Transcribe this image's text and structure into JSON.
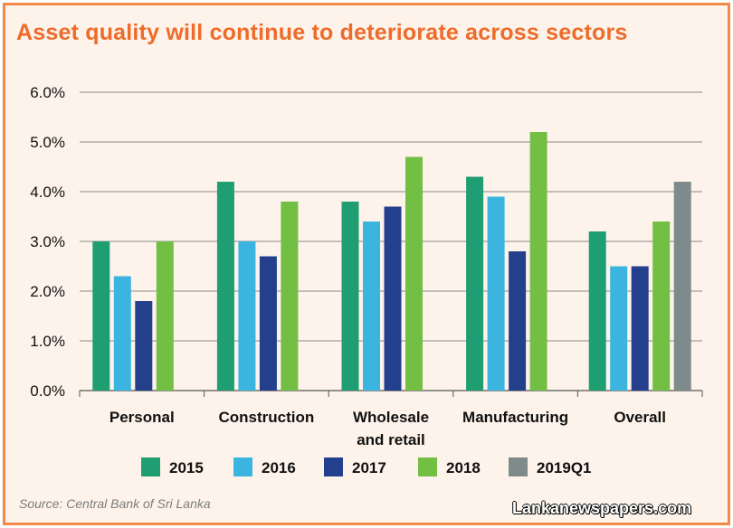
{
  "title": "Asset quality will continue to deteriorate across sectors",
  "source": "Source: Central Bank of Sri Lanka",
  "watermark": "Lankanewspapers.com",
  "chart_data": {
    "type": "bar",
    "title": "Asset quality will continue to deteriorate across sectors",
    "xlabel": "",
    "ylabel": "",
    "ylim": [
      0,
      6
    ],
    "yticks": [
      "0.0%",
      "1.0%",
      "2.0%",
      "3.0%",
      "4.0%",
      "5.0%",
      "6.0%"
    ],
    "grid": true,
    "legend_position": "bottom",
    "categories": [
      [
        "Personal"
      ],
      [
        "Construction"
      ],
      [
        "Wholesale",
        "and retail"
      ],
      [
        "Manufacturing"
      ],
      [
        "Overall"
      ]
    ],
    "series": [
      {
        "name": "2015",
        "color": "#1f9e73",
        "values": [
          3.0,
          4.2,
          3.8,
          4.3,
          3.2
        ]
      },
      {
        "name": "2016",
        "color": "#3bb5e0",
        "values": [
          2.3,
          3.0,
          3.4,
          3.9,
          2.5
        ]
      },
      {
        "name": "2017",
        "color": "#243f8c",
        "values": [
          1.8,
          2.7,
          3.7,
          2.8,
          2.5
        ]
      },
      {
        "name": "2018",
        "color": "#72bf44",
        "values": [
          3.0,
          3.8,
          4.7,
          5.2,
          3.4
        ]
      },
      {
        "name": "2019Q1",
        "color": "#7f8a8b",
        "values": [
          null,
          null,
          null,
          null,
          4.2
        ]
      }
    ]
  }
}
